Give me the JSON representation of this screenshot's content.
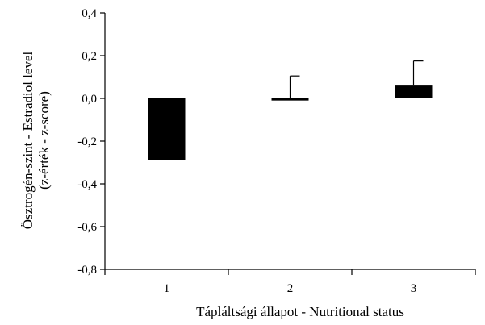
{
  "chart_data": {
    "type": "bar",
    "categories": [
      "1",
      "2",
      "3"
    ],
    "series": [
      {
        "values": [
          -0.29,
          -0.01,
          0.06
        ],
        "error_plus": [
          0.12,
          0.115,
          0.115
        ]
      }
    ],
    "xlabel": "Tápláltsági állapot - Nutritional  status",
    "ylabel_lines": [
      "Ösztrogén-szint  - Estradiol level",
      "(z-érték  - z-score)"
    ],
    "ylim": [
      -0.8,
      0.4
    ],
    "yticks": [
      0.4,
      0.2,
      0.0,
      -0.2,
      -0.4,
      -0.6,
      -0.8
    ],
    "ytick_labels": [
      "0,4",
      "0,2",
      "0,0",
      "-0,2",
      "-0,4",
      "-0,6",
      "-0,8"
    ],
    "grid": false,
    "legend": "none",
    "bar_color": "#000000",
    "error_bar_style": "upper-only"
  }
}
